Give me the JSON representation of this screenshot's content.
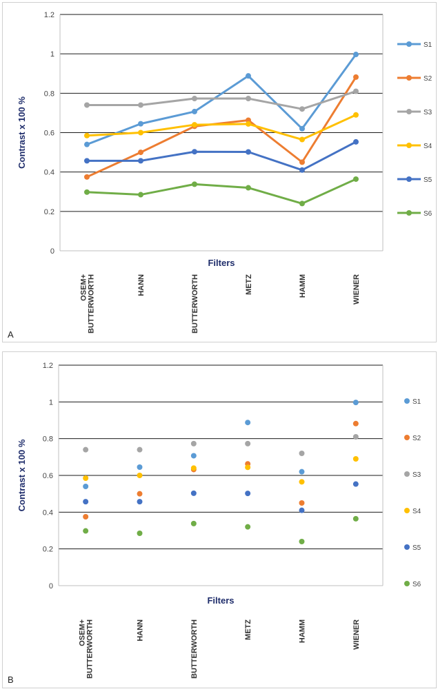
{
  "chart_data": [
    {
      "panel_label": "A",
      "type": "line",
      "categories": [
        "OSEM+\nBUTTERWORTH",
        "HANN",
        "BUTTERWORTH",
        "METZ",
        "HAMM",
        "WIENER"
      ],
      "ylabel": "Contrast x 100 %",
      "xlabel": "Filters",
      "ylim": [
        0,
        1.2
      ],
      "yticks": [
        "0",
        "0.2",
        "0.4",
        "0.6",
        "0.8",
        "1",
        "1.2"
      ],
      "grid": true,
      "legend_position": "right",
      "series": [
        {
          "name": "S1",
          "color": "#5b9bd5",
          "values": [
            0.54,
            0.645,
            0.707,
            0.888,
            0.62,
            0.997
          ]
        },
        {
          "name": "S2",
          "color": "#ed7d31",
          "values": [
            0.375,
            0.5,
            0.632,
            0.663,
            0.45,
            0.882
          ]
        },
        {
          "name": "S3",
          "color": "#a5a5a5",
          "values": [
            0.74,
            0.74,
            0.773,
            0.773,
            0.72,
            0.81
          ]
        },
        {
          "name": "S4",
          "color": "#ffc000",
          "values": [
            0.585,
            0.6,
            0.64,
            0.644,
            0.565,
            0.69
          ]
        },
        {
          "name": "S5",
          "color": "#4472c4",
          "values": [
            0.457,
            0.457,
            0.503,
            0.502,
            0.41,
            0.553
          ]
        },
        {
          "name": "S6",
          "color": "#70ad47",
          "values": [
            0.298,
            0.285,
            0.338,
            0.32,
            0.24,
            0.364
          ]
        }
      ]
    },
    {
      "panel_label": "B",
      "type": "scatter",
      "categories": [
        "OSEM+\nBUTTERWORTH",
        "HANN",
        "BUTTERWORTH",
        "METZ",
        "HAMM",
        "WIENER"
      ],
      "ylabel": "Contrast x 100 %",
      "xlabel": "Filters",
      "ylim": [
        0,
        1.2
      ],
      "yticks": [
        "0",
        "0.2",
        "0.4",
        "0.6",
        "0.8",
        "1",
        "1.2"
      ],
      "grid": true,
      "legend_position": "right",
      "series": [
        {
          "name": "S1",
          "color": "#5b9bd5",
          "values": [
            0.54,
            0.645,
            0.707,
            0.888,
            0.62,
            0.997
          ]
        },
        {
          "name": "S2",
          "color": "#ed7d31",
          "values": [
            0.375,
            0.5,
            0.632,
            0.663,
            0.45,
            0.882
          ]
        },
        {
          "name": "S3",
          "color": "#a5a5a5",
          "values": [
            0.74,
            0.74,
            0.773,
            0.773,
            0.72,
            0.81
          ]
        },
        {
          "name": "S4",
          "color": "#ffc000",
          "values": [
            0.585,
            0.6,
            0.64,
            0.644,
            0.565,
            0.69
          ]
        },
        {
          "name": "S5",
          "color": "#4472c4",
          "values": [
            0.457,
            0.457,
            0.503,
            0.502,
            0.41,
            0.553
          ]
        },
        {
          "name": "S6",
          "color": "#70ad47",
          "values": [
            0.298,
            0.285,
            0.338,
            0.32,
            0.24,
            0.364
          ]
        }
      ]
    }
  ]
}
